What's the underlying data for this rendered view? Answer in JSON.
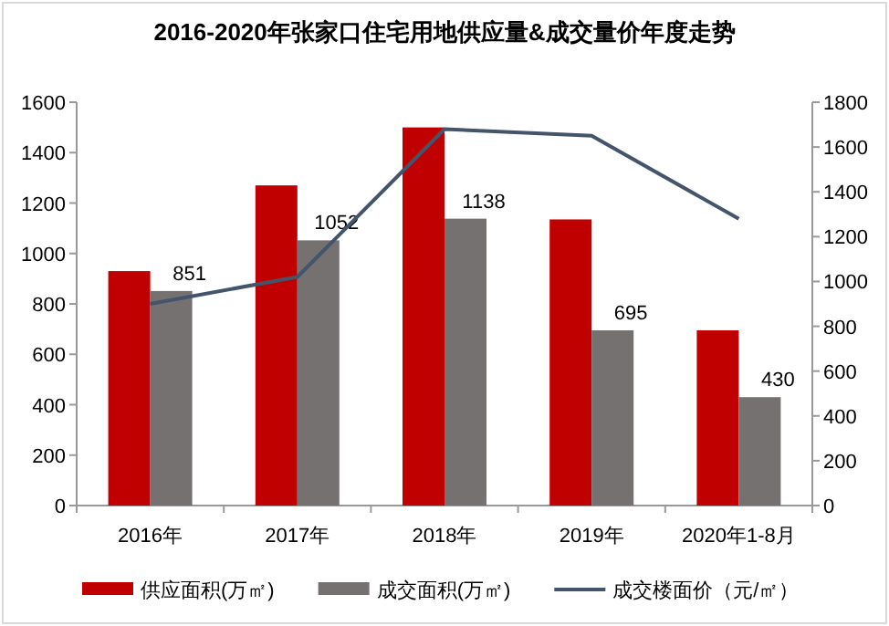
{
  "chart_data": {
    "type": "bar",
    "title": "2016-2020年张家口住宅用地供应量&成交量价年度走势",
    "categories": [
      "2016年",
      "2017年",
      "2018年",
      "2019年",
      "2020年1-8月"
    ],
    "series": [
      {
        "name": "供应面积(万㎡)",
        "color": "#c00000",
        "values": [
          930,
          1270,
          1500,
          1135,
          695
        ]
      },
      {
        "name": "成交面积(万㎡)",
        "color": "#767171",
        "values": [
          851,
          1052,
          1138,
          695,
          430
        ],
        "value_labels": [
          "851",
          "1052",
          "1138",
          "695",
          "430"
        ]
      },
      {
        "name": "成交楼面价（元/㎡）",
        "type": "line",
        "axis": "y2",
        "color": "#44546a",
        "values": [
          900,
          1020,
          1680,
          1650,
          1280
        ]
      }
    ],
    "ylim": [
      0,
      1600
    ],
    "yticks": [
      0,
      200,
      400,
      600,
      800,
      1000,
      1200,
      1400,
      1600
    ],
    "y2lim": [
      0,
      1800
    ],
    "y2ticks": [
      0,
      200,
      400,
      600,
      800,
      1000,
      1200,
      1400,
      1600,
      1800
    ],
    "grid": false,
    "legend": "bottom"
  }
}
